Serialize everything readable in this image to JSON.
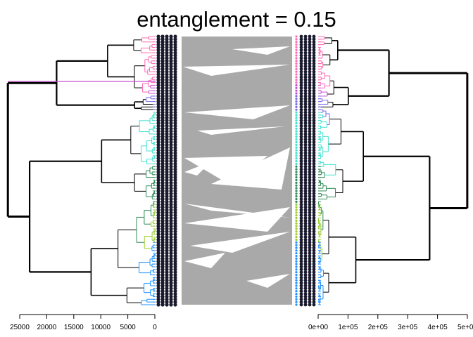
{
  "chart_data": {
    "type": "tanglegram",
    "title": "entanglement = 0.15",
    "left_tree": {
      "axis_ticks": [
        25000,
        20000,
        15000,
        10000,
        5000,
        0
      ],
      "axis_tick_labels": [
        "25000",
        "20000",
        "15000",
        "10000",
        "5000",
        "0"
      ],
      "xlim": [
        27000,
        0
      ],
      "root_height": 27000
    },
    "right_tree": {
      "axis_ticks": [
        0,
        100000,
        200000,
        300000,
        400000,
        500000
      ],
      "axis_tick_labels": [
        "0e+00",
        "1e+05",
        "2e+05",
        "3e+05",
        "4e+05",
        "5e+05"
      ],
      "xlim": [
        0,
        530000
      ],
      "root_height": 530000
    },
    "connector_color": "#a9a9a9",
    "cluster_colors": [
      "#ff69b4",
      "#c64fd1",
      "#7b68ee",
      "#40e0d0",
      "#2e8b57",
      "#9acd32",
      "#1e90ff"
    ]
  }
}
